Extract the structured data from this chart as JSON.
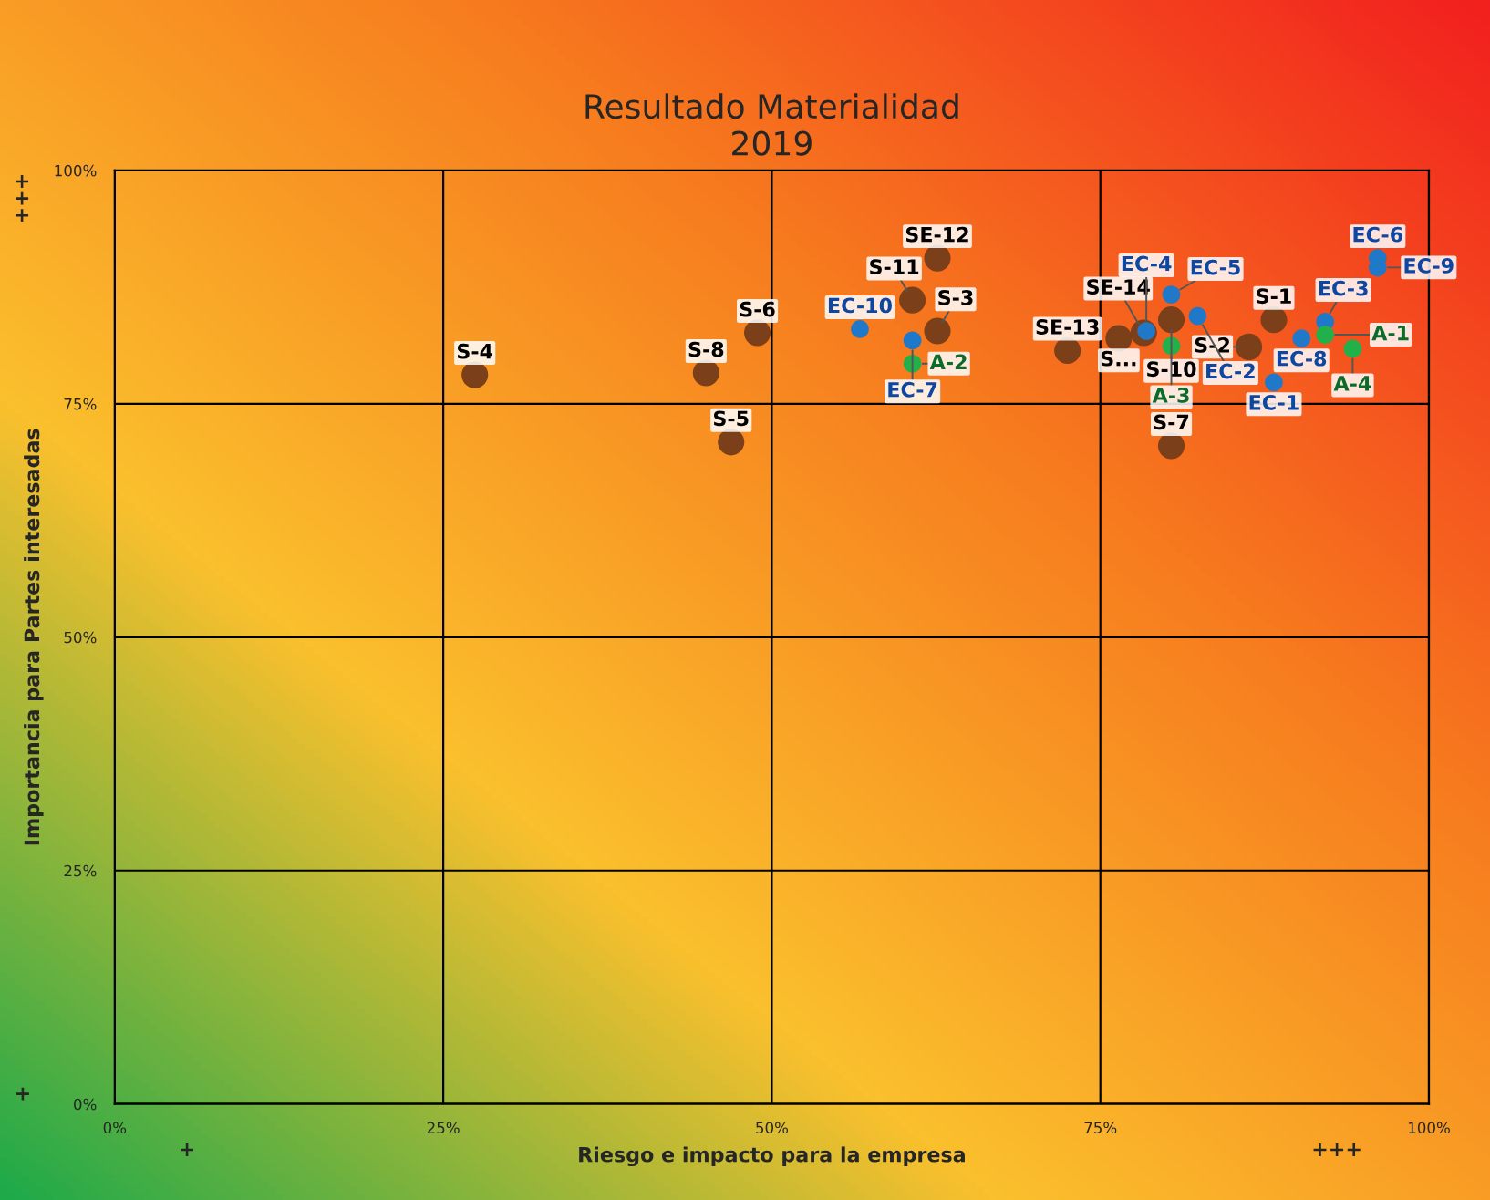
{
  "chart_data": {
    "type": "scatter",
    "title": "Resultado Materialidad\n2019",
    "xlabel": "Riesgo e impacto para la empresa",
    "ylabel": "Importancia para Partes interesadas",
    "xlim": [
      0,
      100
    ],
    "ylim": [
      0,
      100
    ],
    "xticks": [
      {
        "value": 0,
        "label": "0%"
      },
      {
        "value": 25,
        "label": "25%"
      },
      {
        "value": 50,
        "label": "50%"
      },
      {
        "value": 75,
        "label": "75%"
      },
      {
        "value": 100,
        "label": "100%"
      }
    ],
    "yticks": [
      {
        "value": 0,
        "label": "0%"
      },
      {
        "value": 25,
        "label": "25%"
      },
      {
        "value": 50,
        "label": "50%"
      },
      {
        "value": 75,
        "label": "75%"
      },
      {
        "value": 100,
        "label": "100%"
      }
    ],
    "grid": true,
    "marker": "circle",
    "series": [
      {
        "color": "#7b3f1a",
        "x": [
          27.4,
          45.0,
          46.9,
          48.9,
          60.7,
          62.6,
          62.6,
          72.5,
          76.4,
          78.3,
          80.4,
          86.3,
          88.2,
          80.4
        ],
        "values": [
          78.1,
          78.3,
          70.9,
          82.6,
          86.1,
          90.6,
          82.8,
          80.7,
          82.0,
          82.6,
          84.0,
          81.1,
          84.0,
          70.5
        ]
      },
      {
        "color": "#1f78c8",
        "x": [
          56.7,
          60.7,
          78.5,
          80.4,
          82.4,
          88.2,
          90.3,
          92.1,
          96.1,
          96.1
        ],
        "values": [
          83.0,
          81.8,
          82.8,
          86.7,
          84.4,
          77.3,
          82.0,
          83.8,
          90.6,
          89.6
        ]
      },
      {
        "color": "#22b04b",
        "x": [
          60.7,
          80.4,
          92.1,
          94.2
        ],
        "values": [
          79.3,
          81.2,
          82.4,
          80.9
        ]
      }
    ],
    "annotations": [
      {
        "text": "S-4",
        "x": 27.4,
        "y": 78.1
      },
      {
        "text": "S-8",
        "x": 45.0,
        "y": 78.3
      },
      {
        "text": "S-5",
        "x": 46.9,
        "y": 70.9
      },
      {
        "text": "S-6",
        "x": 48.9,
        "y": 82.6
      },
      {
        "text": "S-11",
        "x": 60.7,
        "y": 86.1
      },
      {
        "text": "SE-12",
        "x": 62.6,
        "y": 90.6
      },
      {
        "text": "S-3",
        "x": 62.6,
        "y": 82.8
      },
      {
        "text": "SE-13",
        "x": 72.5,
        "y": 80.7
      },
      {
        "text": "S...",
        "x": 76.4,
        "y": 82.0
      },
      {
        "text": "SE-14",
        "x": 78.3,
        "y": 82.6
      },
      {
        "text": "S-10",
        "x": 80.4,
        "y": 84.0
      },
      {
        "text": "S-2",
        "x": 86.3,
        "y": 81.1
      },
      {
        "text": "S-1",
        "x": 88.2,
        "y": 84.0
      },
      {
        "text": "S-7",
        "x": 80.4,
        "y": 70.5
      },
      {
        "text": "EC-10",
        "x": 56.7,
        "y": 83.0
      },
      {
        "text": "EC-7",
        "x": 60.7,
        "y": 81.8
      },
      {
        "text": "EC-4",
        "x": 78.5,
        "y": 82.8
      },
      {
        "text": "EC-5",
        "x": 80.4,
        "y": 86.7
      },
      {
        "text": "EC-2",
        "x": 82.4,
        "y": 84.4
      },
      {
        "text": "EC-1",
        "x": 88.2,
        "y": 77.3
      },
      {
        "text": "EC-8",
        "x": 90.3,
        "y": 82.0
      },
      {
        "text": "EC-3",
        "x": 92.1,
        "y": 83.8
      },
      {
        "text": "EC-6",
        "x": 96.1,
        "y": 90.6
      },
      {
        "text": "EC-9",
        "x": 96.1,
        "y": 89.6
      },
      {
        "text": "A-2",
        "x": 60.7,
        "y": 79.3
      },
      {
        "text": "A-3",
        "x": 80.4,
        "y": 81.2
      },
      {
        "text": "A-1",
        "x": 92.1,
        "y": 82.4
      },
      {
        "text": "A-4",
        "x": 94.2,
        "y": 80.9
      },
      "+++",
      "+",
      "+",
      "+++"
    ]
  }
}
